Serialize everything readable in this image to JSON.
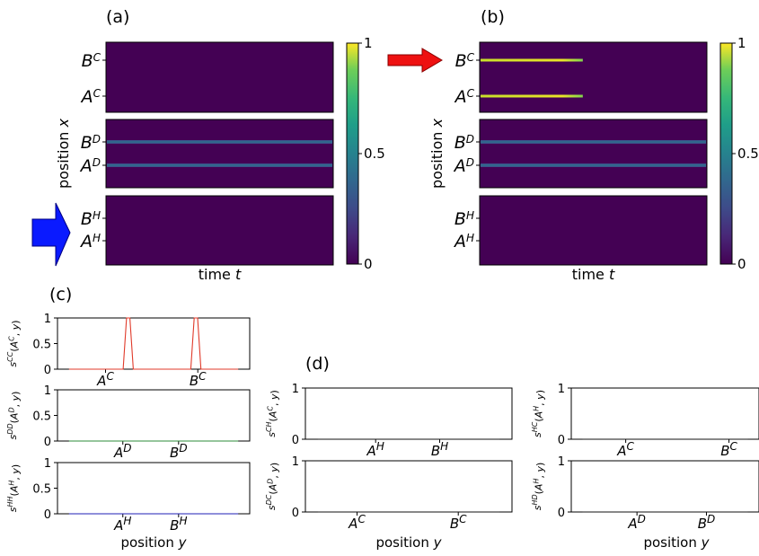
{
  "panel_labels": {
    "a": "(a)",
    "b": "(b)",
    "c": "(c)",
    "d": "(d)"
  },
  "colors": {
    "viridis_low": "#440154",
    "viridis_high": "#fde725",
    "line_cc": "#e03a2a",
    "line_dd": "#2e8b3a",
    "line_hh": "#1f1fb4",
    "arrow_red": "#ee1111",
    "arrow_blue": "#0a1aff"
  },
  "icons": {
    "arrow_b": "right-arrow-red",
    "arrow_a": "right-arrow-blue"
  },
  "chart_data": [
    {
      "id": "a",
      "type": "heatmap",
      "xlabel": "time t",
      "ylabel": "position x",
      "colorbar": {
        "ticks": [
          "0",
          "0.5",
          "1"
        ],
        "range": [
          0,
          1
        ]
      },
      "rows": [
        {
          "layer": "C",
          "labels": [
            {
              "base": "B",
              "sup": "C"
            },
            {
              "base": "A",
              "sup": "C"
            }
          ],
          "stripes": []
        },
        {
          "layer": "D",
          "labels": [
            {
              "base": "B",
              "sup": "D"
            },
            {
              "base": "A",
              "sup": "D"
            }
          ],
          "stripes": [
            {
              "label": "B",
              "end": 1.0,
              "value": 0.3
            },
            {
              "label": "A",
              "end": 1.0,
              "value": 0.3
            }
          ]
        },
        {
          "layer": "H",
          "labels": [
            {
              "base": "B",
              "sup": "H"
            },
            {
              "base": "A",
              "sup": "H"
            }
          ],
          "stripes": []
        }
      ]
    },
    {
      "id": "b",
      "type": "heatmap",
      "xlabel": "time t",
      "ylabel": "position x",
      "colorbar": {
        "ticks": [
          "0",
          "0.5",
          "1"
        ],
        "range": [
          0,
          1
        ]
      },
      "rows": [
        {
          "layer": "C",
          "labels": [
            {
              "base": "B",
              "sup": "C"
            },
            {
              "base": "A",
              "sup": "C"
            }
          ],
          "stripes": [
            {
              "label": "B",
              "end": 0.45,
              "value": 1.0
            },
            {
              "label": "A",
              "end": 0.45,
              "value": 1.0
            }
          ]
        },
        {
          "layer": "D",
          "labels": [
            {
              "base": "B",
              "sup": "D"
            },
            {
              "base": "A",
              "sup": "D"
            }
          ],
          "stripes": [
            {
              "label": "B",
              "end": 1.0,
              "value": 0.3
            },
            {
              "label": "A",
              "end": 1.0,
              "value": 0.3
            }
          ]
        },
        {
          "layer": "H",
          "labels": [
            {
              "base": "B",
              "sup": "H"
            },
            {
              "base": "A",
              "sup": "H"
            }
          ],
          "stripes": []
        }
      ]
    },
    {
      "id": "c",
      "type": "line",
      "xlabel": "position y",
      "subplots": [
        {
          "ylabel": "s^{CC}(A^C, y)",
          "ticks": [
            {
              "base": "A",
              "sup": "C"
            },
            {
              "base": "B",
              "sup": "C"
            }
          ],
          "series": "cc",
          "x": [
            0,
            0.32,
            0.34,
            0.36,
            0.38,
            0.72,
            0.74,
            0.76,
            0.78,
            1
          ],
          "y": [
            0,
            0,
            1,
            1,
            0,
            0,
            1,
            1,
            0,
            0
          ],
          "ylim": [
            0,
            1
          ],
          "yticks": [
            "0",
            "0.5",
            "1"
          ]
        },
        {
          "ylabel": "s^{DD}(A^D, y)",
          "ticks": [
            {
              "base": "A",
              "sup": "D"
            },
            {
              "base": "B",
              "sup": "D"
            }
          ],
          "series": "dd",
          "x": [
            0,
            1
          ],
          "y": [
            0,
            0
          ],
          "ylim": [
            0,
            1
          ],
          "yticks": [
            "0",
            "0.5",
            "1"
          ]
        },
        {
          "ylabel": "s^{HH}(A^H, y)",
          "ticks": [
            {
              "base": "A",
              "sup": "H"
            },
            {
              "base": "B",
              "sup": "H"
            }
          ],
          "series": "hh",
          "x": [
            0,
            1
          ],
          "y": [
            0,
            0
          ],
          "ylim": [
            0,
            1
          ],
          "yticks": [
            "0",
            "0.5",
            "1"
          ]
        }
      ]
    },
    {
      "id": "d",
      "type": "line",
      "xlabel": "position y",
      "subplots": [
        {
          "ylabel": "s^{CH}(A^C, y)",
          "ticks": [
            {
              "base": "A",
              "sup": "H"
            },
            {
              "base": "B",
              "sup": "H"
            }
          ],
          "x": [
            0,
            1
          ],
          "y": [
            0,
            0
          ],
          "ylim": [
            0,
            1
          ],
          "yticks": [
            "0",
            "1"
          ]
        },
        {
          "ylabel": "s^{HC}(A^H, y)",
          "ticks": [
            {
              "base": "A",
              "sup": "C"
            },
            {
              "base": "B",
              "sup": "C"
            }
          ],
          "x": [
            0,
            1
          ],
          "y": [
            0,
            0
          ],
          "ylim": [
            0,
            1
          ],
          "yticks": [
            "0",
            "1"
          ]
        },
        {
          "ylabel": "s^{DC}(A^D, y)",
          "ticks": [
            {
              "base": "A",
              "sup": "C"
            },
            {
              "base": "B",
              "sup": "C"
            }
          ],
          "x": [
            0,
            1
          ],
          "y": [
            0,
            0
          ],
          "ylim": [
            0,
            1
          ],
          "yticks": [
            "0",
            "1"
          ]
        },
        {
          "ylabel": "s^{HD}(A^H, y)",
          "ticks": [
            {
              "base": "A",
              "sup": "D"
            },
            {
              "base": "B",
              "sup": "D"
            }
          ],
          "x": [
            0,
            1
          ],
          "y": [
            0,
            0
          ],
          "ylim": [
            0,
            1
          ],
          "yticks": [
            "0",
            "1"
          ]
        }
      ]
    }
  ]
}
